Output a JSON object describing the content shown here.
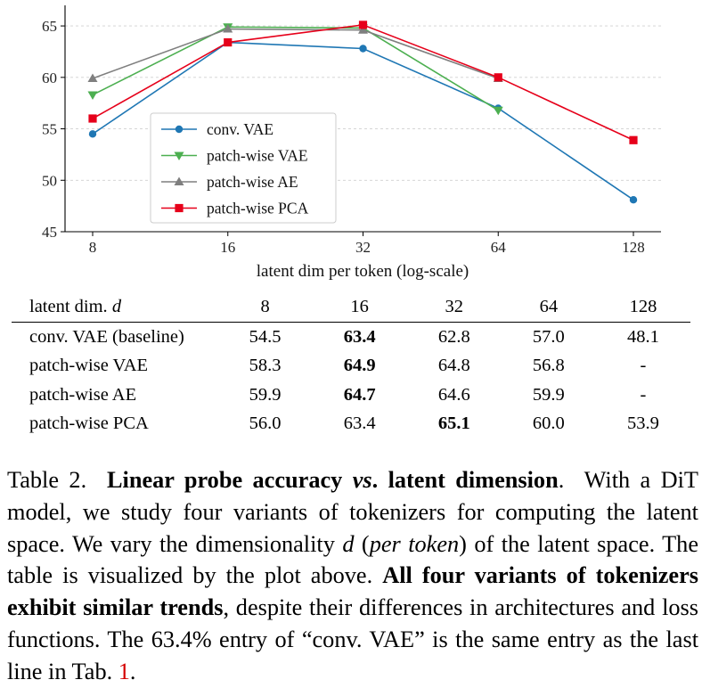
{
  "chart_data": {
    "type": "line",
    "x": [
      8,
      16,
      32,
      64,
      128
    ],
    "x_scale": "log2",
    "xlabel": "latent dim per token (log-scale)",
    "ylabel": "",
    "ylim": [
      45,
      67
    ],
    "yticks": [
      45,
      50,
      55,
      60,
      65
    ],
    "grid": "horizontal dashed",
    "legend_position": "center-left",
    "series": [
      {
        "name": "conv. VAE",
        "color": "#1f77b4",
        "marker": "circle",
        "values": [
          54.5,
          63.4,
          62.8,
          57.0,
          48.1
        ]
      },
      {
        "name": "patch-wise VAE",
        "color": "#4caf50",
        "marker": "triangle-down",
        "values": [
          58.3,
          64.9,
          64.8,
          56.8,
          null
        ]
      },
      {
        "name": "patch-wise AE",
        "color": "#7f7f7f",
        "marker": "triangle-up",
        "values": [
          59.9,
          64.7,
          64.6,
          59.9,
          null
        ]
      },
      {
        "name": "patch-wise PCA",
        "color": "#e6001a",
        "marker": "square",
        "values": [
          56.0,
          63.4,
          65.1,
          60.0,
          53.9
        ]
      }
    ]
  },
  "table": {
    "header": {
      "label_prefix": "latent dim.",
      "label_var": "d",
      "columns": [
        "8",
        "16",
        "32",
        "64",
        "128"
      ]
    },
    "rows": [
      {
        "label": "conv. VAE (baseline)",
        "cells": [
          "54.5",
          "63.4",
          "62.8",
          "57.0",
          "48.1"
        ],
        "bold_index": 1
      },
      {
        "label": "patch-wise VAE",
        "cells": [
          "58.3",
          "64.9",
          "64.8",
          "56.8",
          "-"
        ],
        "bold_index": 1
      },
      {
        "label": "patch-wise AE",
        "cells": [
          "59.9",
          "64.7",
          "64.6",
          "59.9",
          "-"
        ],
        "bold_index": 1
      },
      {
        "label": "patch-wise PCA",
        "cells": [
          "56.0",
          "63.4",
          "65.1",
          "60.0",
          "53.9"
        ],
        "bold_index": 2
      }
    ]
  },
  "caption": {
    "label": "Table 2.",
    "title_a": "Linear probe accuracy",
    "title_vs": "vs",
    "title_b": ". latent dimension",
    "title_end": ".",
    "s1": "With a DiT model, we study four variants of tokenizers for computing the latent space. We vary the dimensionality",
    "var_d": "d",
    "paren_open": "(",
    "per_token": "per token",
    "s2": ") of the latent space. The table is visualized by the plot above.",
    "bold_claim": "All four variants of tokenizers exhibit similar trends",
    "s3": ", despite their differences in architectures and loss functions. The 63.4% entry of “conv. VAE” is the same entry as the last line in Tab.",
    "ref": "1",
    "end": "."
  }
}
